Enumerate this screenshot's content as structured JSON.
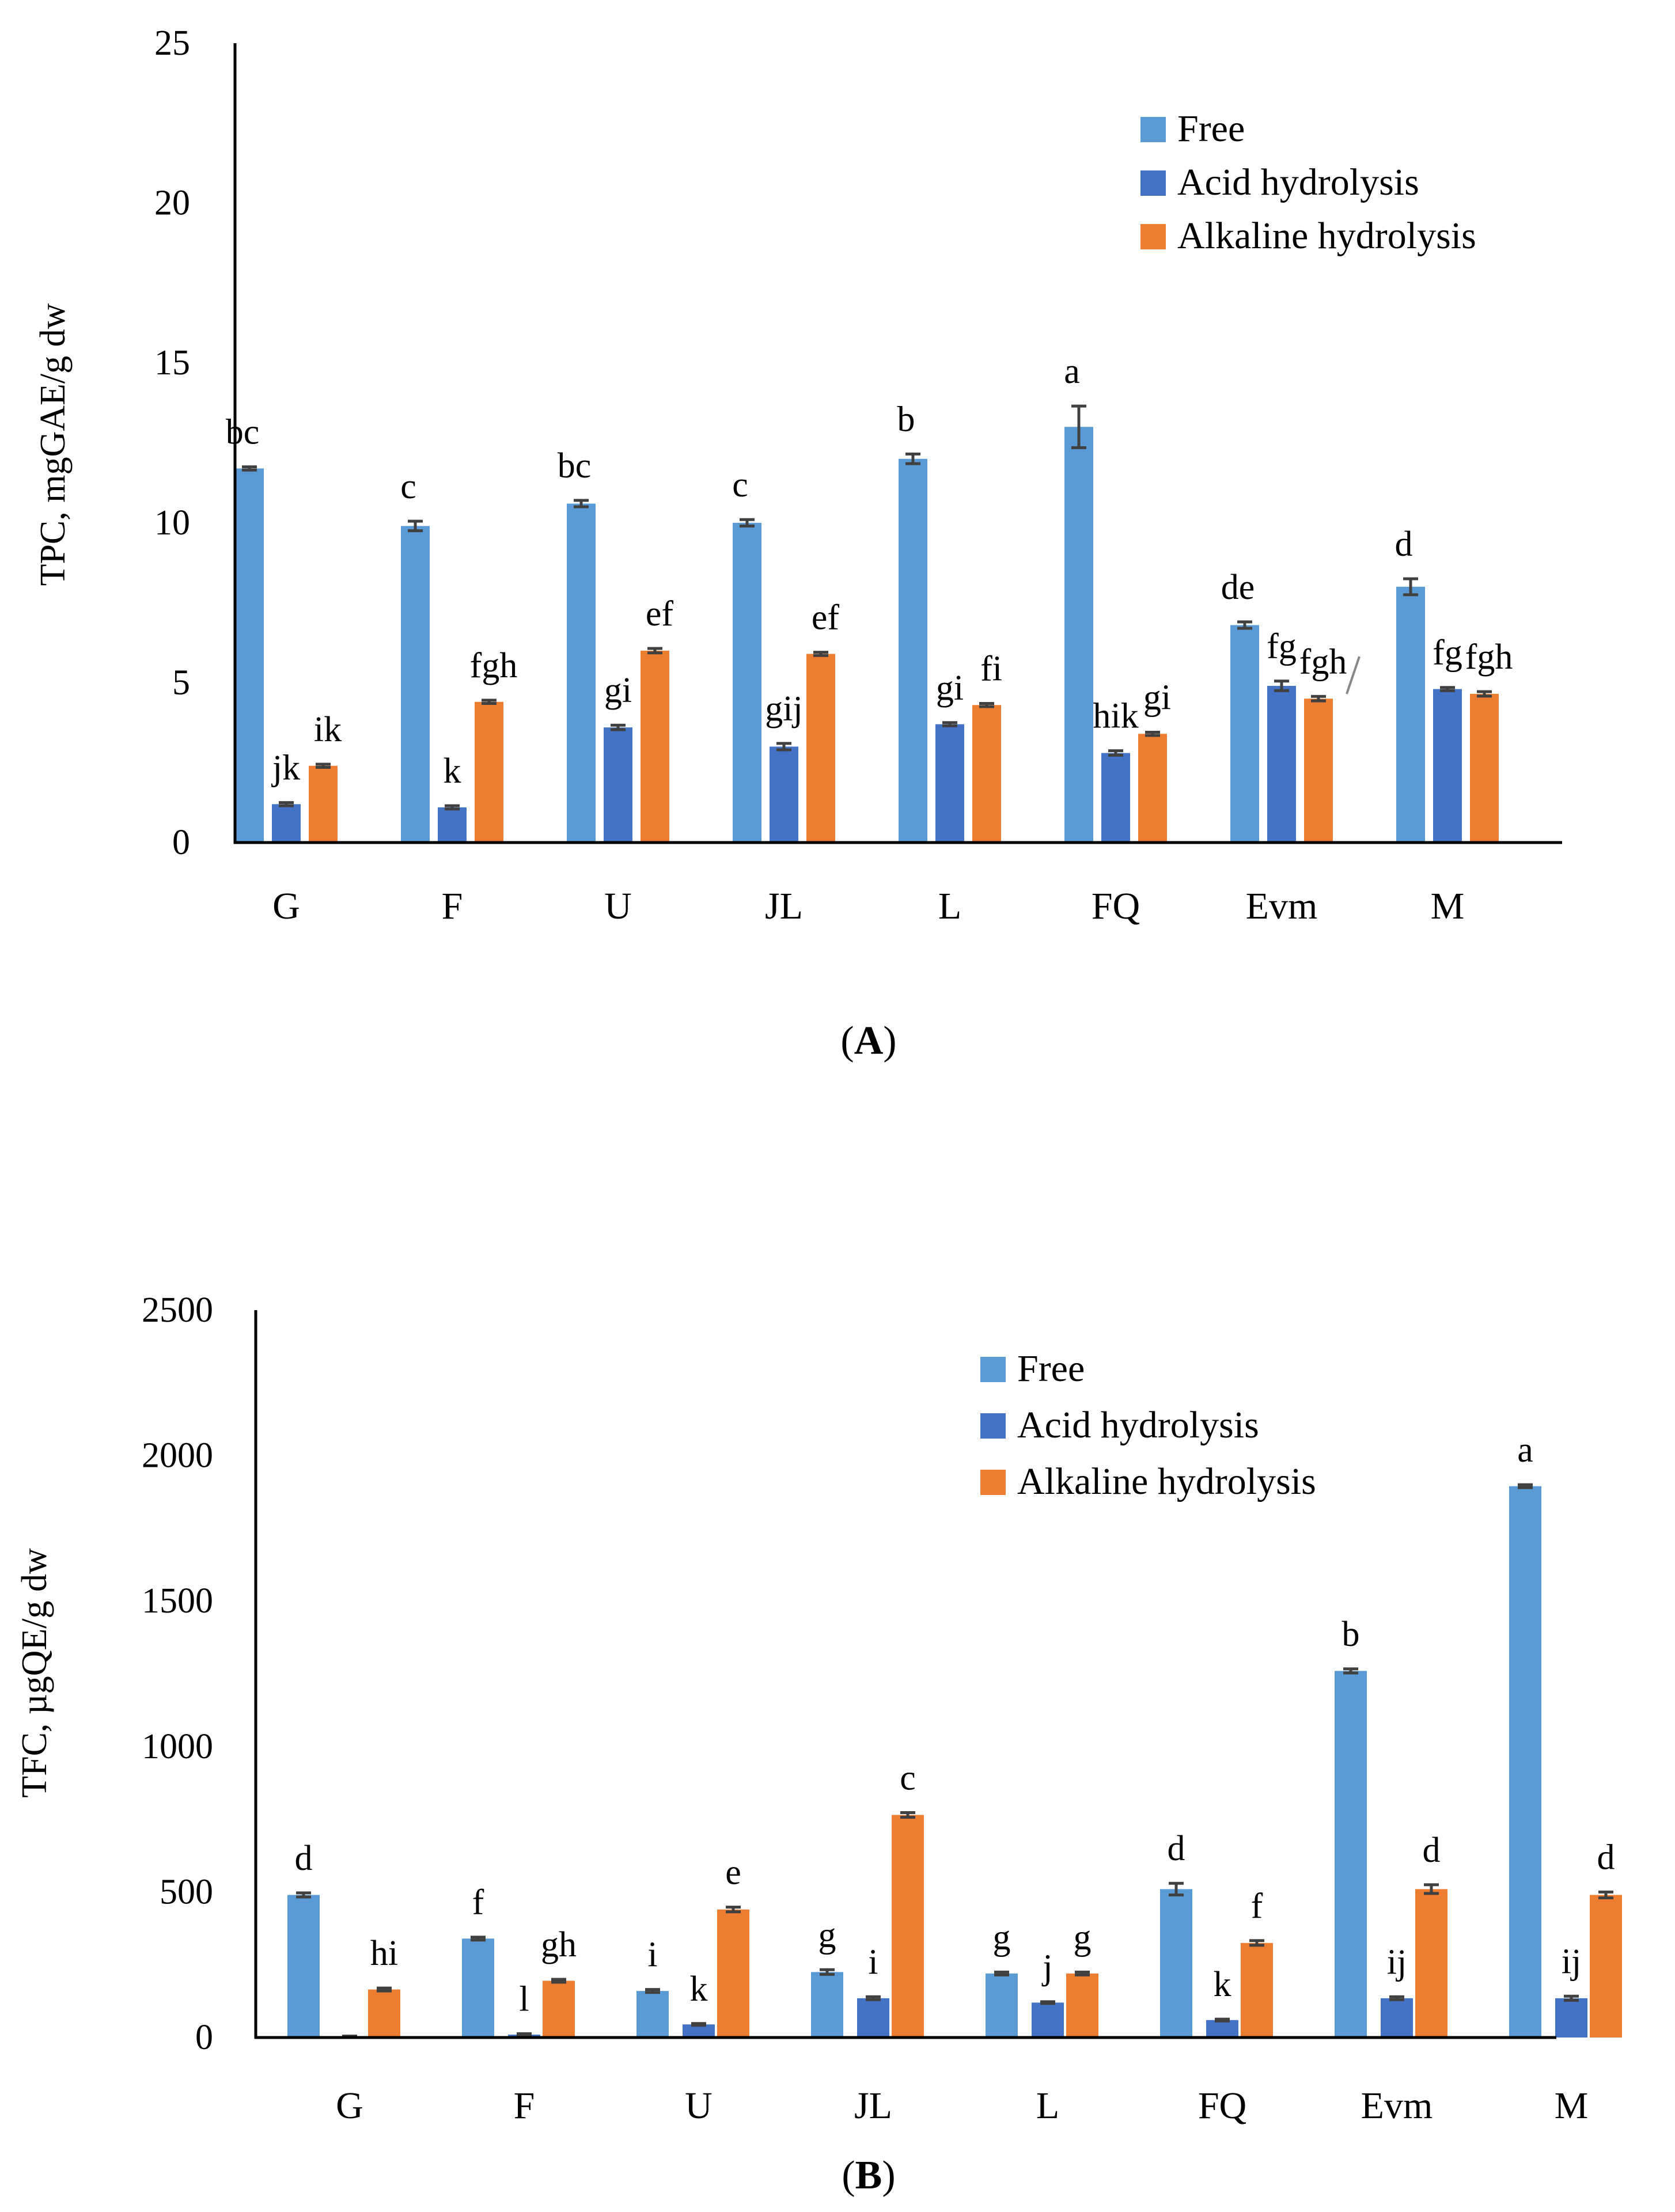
{
  "chart_data": [
    {
      "type": "bar",
      "panel_label": "A",
      "ylabel": "TPC, mgGAE/g dw",
      "xlabel": "",
      "ylim": [
        0,
        25
      ],
      "yticks": [
        "0",
        "5",
        "10",
        "15",
        "20",
        "25"
      ],
      "categories": [
        "G",
        "F",
        "U",
        "JL",
        "L",
        "FQ",
        "Evm",
        "M"
      ],
      "legend_position": "top-right",
      "series": [
        {
          "name": "Free",
          "color": "#5B9BD5",
          "values": [
            11.7,
            9.9,
            10.6,
            10.0,
            12.0,
            13.0,
            6.8,
            8.0
          ],
          "errors": [
            0.05,
            0.15,
            0.1,
            0.1,
            0.15,
            0.65,
            0.1,
            0.25
          ],
          "labels": [
            "bc",
            "c",
            "bc",
            "c",
            "b",
            "a",
            "de",
            "d"
          ]
        },
        {
          "name": "Acid hydrolysis",
          "color": "#4472C4",
          "values": [
            1.2,
            1.1,
            3.6,
            3.0,
            3.7,
            2.8,
            4.9,
            4.8
          ],
          "errors": [
            0.05,
            0.05,
            0.07,
            0.1,
            0.05,
            0.07,
            0.15,
            0.05
          ],
          "labels": [
            "jk",
            "k",
            "gi",
            "gij",
            "gi",
            "hik",
            "fg",
            "fg"
          ]
        },
        {
          "name": "Alkaline hydrolysis",
          "color": "#ED7D31",
          "values": [
            2.4,
            4.4,
            6.0,
            5.9,
            4.3,
            3.4,
            4.5,
            4.65
          ],
          "errors": [
            0.05,
            0.05,
            0.07,
            0.05,
            0.05,
            0.05,
            0.07,
            0.07
          ],
          "labels": [
            "ik",
            "fgh",
            "ef",
            "ef",
            "fi",
            "gi",
            "fgh",
            "fgh"
          ]
        }
      ]
    },
    {
      "type": "bar",
      "panel_label": "B",
      "ylabel": "TFC, µgQE/g dw",
      "xlabel": "",
      "ylim": [
        0,
        2500
      ],
      "yticks": [
        "0",
        "500",
        "1000",
        "1500",
        "2000",
        "2500"
      ],
      "categories": [
        "G",
        "F",
        "U",
        "JL",
        "L",
        "FQ",
        "Evm",
        "M"
      ],
      "legend_position": "top-right",
      "series": [
        {
          "name": "Free",
          "color": "#5B9BD5",
          "values": [
            490,
            340,
            160,
            225,
            220,
            510,
            1260,
            1895
          ],
          "errors": [
            7,
            5,
            5,
            8,
            5,
            20,
            7,
            5
          ],
          "labels": [
            "d",
            "f",
            "i",
            "g",
            "g",
            "d",
            "b",
            "a"
          ]
        },
        {
          "name": "Acid hydrolysis",
          "color": "#4472C4",
          "values": [
            3,
            10,
            45,
            135,
            120,
            60,
            135,
            135
          ],
          "errors": [
            2,
            3,
            3,
            5,
            3,
            3,
            5,
            7
          ],
          "labels": [
            "",
            "l",
            "k",
            "i",
            "j",
            "k",
            "ij",
            "ij"
          ]
        },
        {
          "name": "Alkaline hydrolysis",
          "color": "#ED7D31",
          "values": [
            165,
            195,
            440,
            765,
            220,
            325,
            510,
            490
          ],
          "errors": [
            5,
            5,
            8,
            8,
            5,
            8,
            15,
            10
          ],
          "labels": [
            "hi",
            "gh",
            "e",
            "c",
            "g",
            "f",
            "d",
            "d"
          ]
        }
      ]
    }
  ]
}
